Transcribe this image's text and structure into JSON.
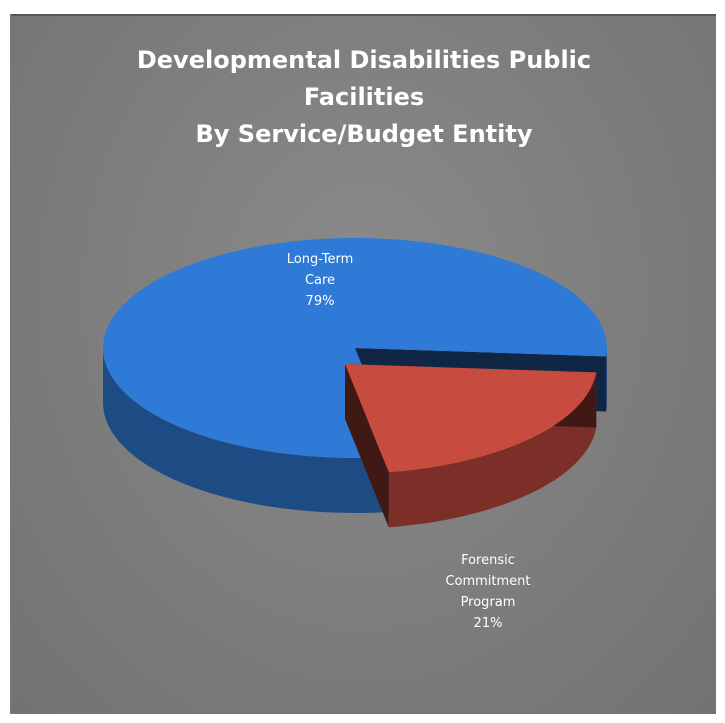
{
  "chart_data": {
    "type": "pie",
    "title_lines": [
      "Developmental Disabilities Public",
      "Facilities",
      "By Service/Budget Entity"
    ],
    "slices": [
      {
        "label_lines": [
          "Long-Term",
          "Care",
          "79%"
        ],
        "name": "Long-Term Care",
        "value": 79,
        "color": "#2f7ad6"
      },
      {
        "label_lines": [
          "Forensic",
          "Commitment",
          "Program",
          "21%"
        ],
        "name": "Forensic Commitment Program",
        "value": 21,
        "color": "#c84b40"
      }
    ],
    "style": "3d-exploded",
    "legend": "none"
  }
}
